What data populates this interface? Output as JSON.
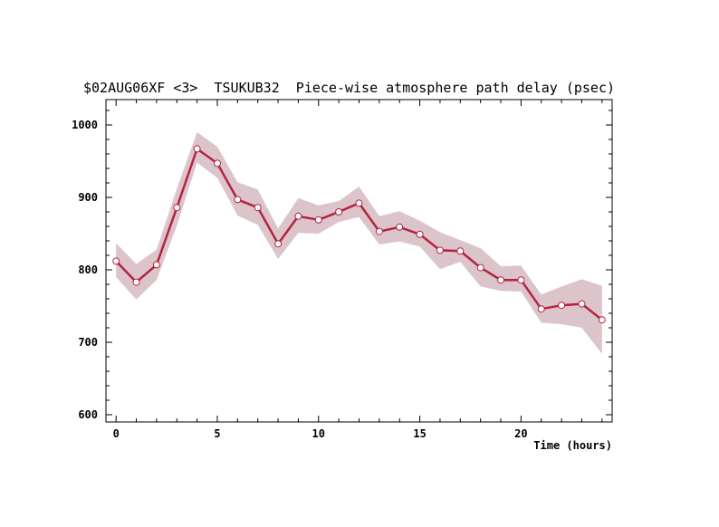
{
  "chart_data": {
    "type": "line",
    "title": "$02AUG06XF <3>  TSUKUB32  Piece-wise atmosphere path delay (psec)",
    "xlabel": "Time (hours)",
    "ylabel": "",
    "xlim": [
      -0.5,
      24.5
    ],
    "ylim": [
      590,
      1035
    ],
    "x_ticks": [
      0,
      5,
      10,
      15,
      20
    ],
    "y_ticks": [
      600,
      700,
      800,
      900,
      1000
    ],
    "grid": false,
    "colors": {
      "line": "#b5223f",
      "band": "#dcc5ca",
      "marker_fill": "#ffffff"
    },
    "series": [
      {
        "x": [
          0,
          1,
          2,
          3,
          4,
          5,
          6,
          7,
          8,
          9,
          10,
          11,
          12,
          13,
          14,
          15,
          16,
          17,
          18,
          19,
          20,
          21,
          22,
          23,
          24
        ],
        "values": [
          812,
          783,
          807,
          886,
          967,
          947,
          897,
          886,
          836,
          874,
          869,
          880,
          892,
          853,
          859,
          849,
          827,
          826,
          803,
          786,
          786,
          746,
          751,
          753,
          731
        ],
        "lower": [
          790,
          759,
          786,
          861,
          948,
          927,
          875,
          862,
          815,
          851,
          850,
          866,
          873,
          835,
          839,
          832,
          801,
          811,
          777,
          771,
          770,
          727,
          725,
          720,
          684
        ],
        "upper": [
          837,
          808,
          828,
          912,
          990,
          970,
          921,
          911,
          857,
          899,
          889,
          895,
          915,
          874,
          881,
          868,
          852,
          841,
          830,
          805,
          806,
          766,
          777,
          787,
          778
        ]
      }
    ]
  }
}
